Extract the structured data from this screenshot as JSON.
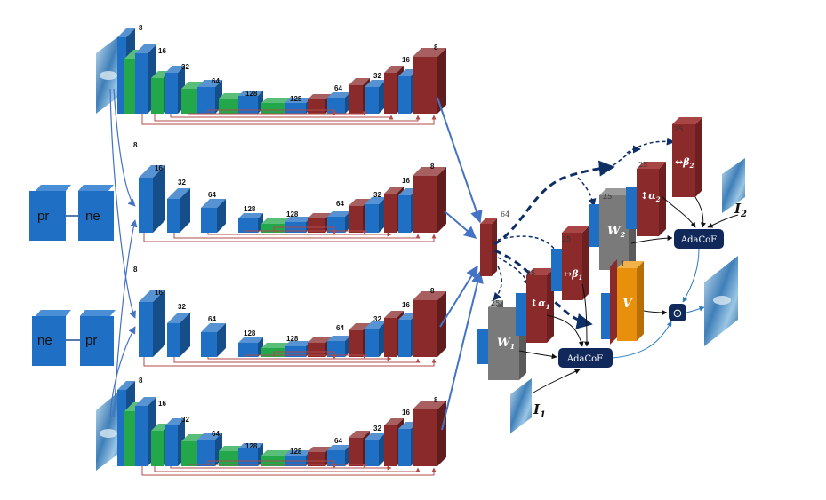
{
  "colors": {
    "conv_blue": "#1f6fc4",
    "conv_green": "#22a84a",
    "deconv_red": "#8b2a2a",
    "gray_layer": "#7a7a7a",
    "orange_layer": "#e8900c",
    "navy_node": "#10285a",
    "arrow_blue": "#4472c4",
    "skip_red": "#b24a4a",
    "dash_navy": "#0e2f66"
  },
  "inputs": {
    "pair_a": [
      "pr",
      "ne"
    ],
    "pair_b": [
      "ne",
      "pr"
    ]
  },
  "unets": [
    {
      "id": "unet-1",
      "labels": [
        "8",
        "16",
        "32",
        "64",
        "128",
        "128",
        "64",
        "32",
        "16",
        "8"
      ]
    },
    {
      "id": "unet-2",
      "labels": [
        "8",
        "16",
        "32",
        "64",
        "128",
        "128",
        "64",
        "32",
        "16",
        "8"
      ]
    },
    {
      "id": "unet-3",
      "labels": [
        "8",
        "16",
        "32",
        "64",
        "128",
        "128",
        "64",
        "32",
        "16",
        "8"
      ]
    },
    {
      "id": "unet-4",
      "labels": [
        "8",
        "16",
        "32",
        "64",
        "128",
        "128",
        "64",
        "32",
        "16",
        "8"
      ]
    }
  ],
  "head": {
    "merge_label": "64",
    "w1_label": "25",
    "alpha1_label": "25",
    "beta1_label": "25",
    "w2_label": "25",
    "alpha2_label": "25",
    "beta2_label": "25",
    "v_label": "1",
    "w1": "W",
    "w1_sub": "1",
    "w2": "W",
    "w2_sub": "2",
    "alpha1": "↕α",
    "alpha1_sub": "1",
    "beta1": "↔β",
    "beta1_sub": "1",
    "alpha2": "↕α",
    "alpha2_sub": "2",
    "beta2": "↔β",
    "beta2_sub": "2",
    "v": "V",
    "adacof_1": "AdaCoF",
    "adacof_2": "AdaCoF",
    "odot": "⊙",
    "i1": "I",
    "i1_sub": "1",
    "i2": "I",
    "i2_sub": "2"
  }
}
